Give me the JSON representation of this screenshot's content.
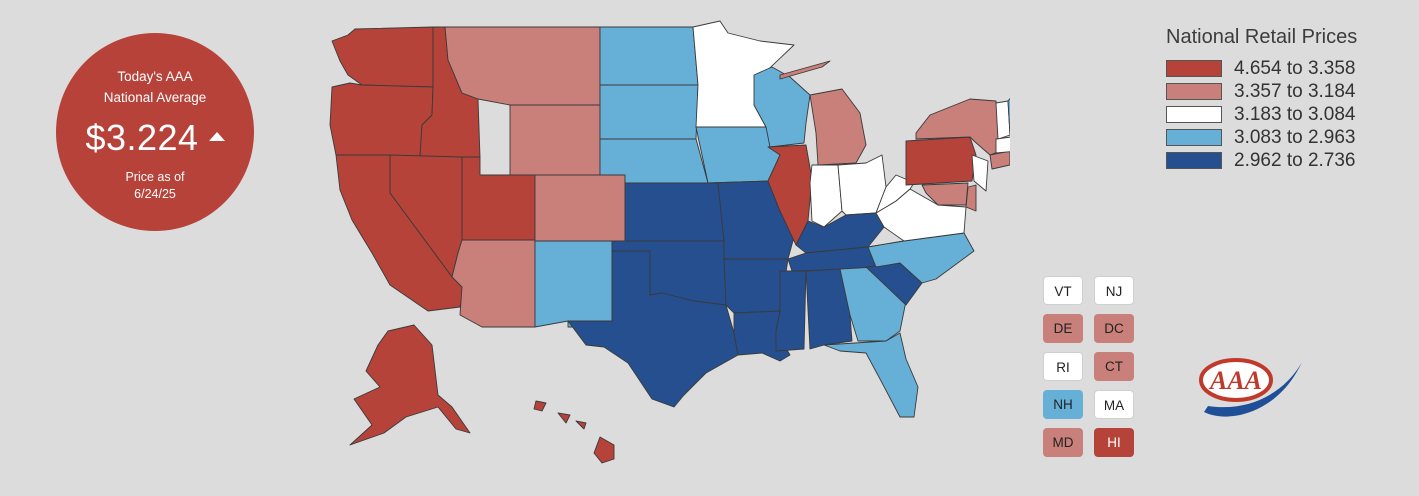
{
  "national_average": {
    "title": "Today's AAA\nNational Average",
    "value": "$3.224",
    "trend": "up",
    "date_line1": "Price as of",
    "date_line2": "6/24/25"
  },
  "legend": {
    "title": "National Retail Prices",
    "bins": [
      {
        "label": "4.654 to 3.358",
        "color": "#b5433a"
      },
      {
        "label": "3.357 to 3.184",
        "color": "#c97f7a"
      },
      {
        "label": "3.183 to 3.084",
        "color": "#ffffff"
      },
      {
        "label": "3.083 to 2.963",
        "color": "#66b0d8"
      },
      {
        "label": "2.962 to 2.736",
        "color": "#264f90"
      }
    ]
  },
  "small_states": [
    {
      "label": "VT",
      "bin": 2
    },
    {
      "label": "NJ",
      "bin": 2
    },
    {
      "label": "DE",
      "bin": 1
    },
    {
      "label": "DC",
      "bin": 1
    },
    {
      "label": "RI",
      "bin": 2
    },
    {
      "label": "CT",
      "bin": 1
    },
    {
      "label": "NH",
      "bin": 3
    },
    {
      "label": "MA",
      "bin": 2
    },
    {
      "label": "MD",
      "bin": 1
    },
    {
      "label": "HI",
      "bin": 0
    }
  ],
  "state_bins": {
    "WA": 0,
    "OR": 0,
    "CA": 0,
    "NV": 0,
    "ID": 0,
    "UT": 0,
    "MT": 1,
    "WY": 1,
    "CO": 1,
    "AZ": 1,
    "NM": 3,
    "ND": 3,
    "SD": 3,
    "NE": 3,
    "KS": 4,
    "OK": 4,
    "TX": 4,
    "MN": 2,
    "IA": 3,
    "MO": 4,
    "AR": 4,
    "LA": 4,
    "WI": 3,
    "IL": 0,
    "MI": 1,
    "IN": 2,
    "OH": 2,
    "KY": 4,
    "TN": 4,
    "MS": 4,
    "AL": 4,
    "GA": 3,
    "FL": 3,
    "SC": 4,
    "NC": 3,
    "VA": 2,
    "WV": 2,
    "PA": 0,
    "NY": 1,
    "NJ": 2,
    "DE": 1,
    "MD": 1,
    "CT": 1,
    "RI": 2,
    "MA": 2,
    "VT": 2,
    "NH": 3,
    "ME": 2,
    "AK": 0,
    "HI": 0
  },
  "logo_text": "AAA"
}
